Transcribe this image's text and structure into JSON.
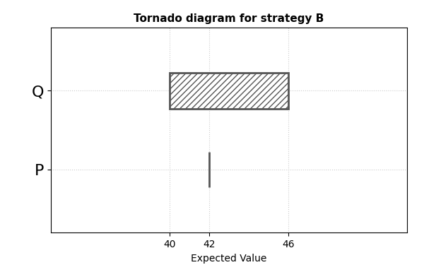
{
  "chart_data": {
    "type": "bar",
    "orientation": "horizontal",
    "title": "Tornado diagram for strategy B",
    "x_label": "Expected Value",
    "categories": [
      "Q",
      "P"
    ],
    "low": [
      40,
      42
    ],
    "high": [
      46,
      42
    ],
    "color": "#555555",
    "xlim": [
      34,
      52
    ],
    "xticks": [
      40,
      42,
      46
    ],
    "grid": true
  }
}
